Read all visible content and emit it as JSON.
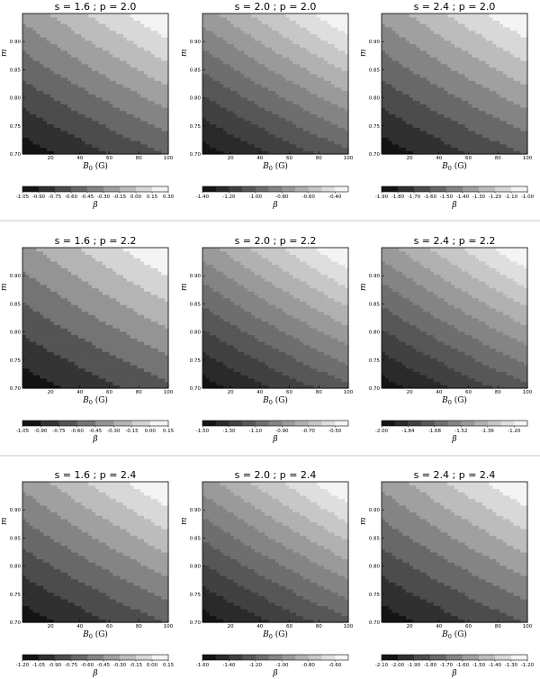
{
  "chart_data": [
    {
      "type": "contour",
      "title": "s = 1.6 ; p = 2.0",
      "xlabel": "B",
      "xlabel_sub": "0",
      "xlabel_unit": " (G)",
      "ylabel": "m",
      "cbar_label": "β",
      "xlim": [
        1,
        100
      ],
      "ylim": [
        0.7,
        0.95
      ],
      "x_ticks": [
        "20",
        "40",
        "60",
        "80",
        "100"
      ],
      "y_ticks": [
        "0.70",
        "0.75",
        "0.80",
        "0.85",
        "0.90"
      ],
      "levels": [
        "-1.05",
        "-0.90",
        "-0.75",
        "-0.60",
        "-0.45",
        "-0.30",
        "-0.15",
        "0.00",
        "0.15",
        "0.30"
      ],
      "cbar_ticks": [
        "-1.05",
        "-0.90",
        "-0.75",
        "-0.60",
        "-0.45",
        "-0.30",
        "-0.15",
        "0.00",
        "0.15",
        "0.30"
      ],
      "beta_min": -1.05,
      "beta_max": 0.3
    },
    {
      "type": "contour",
      "title": "s = 2.0 ; p = 2.0",
      "xlabel": "B",
      "xlabel_sub": "0",
      "xlabel_unit": " (G)",
      "ylabel": "m",
      "cbar_label": "β",
      "xlim": [
        1,
        100
      ],
      "ylim": [
        0.7,
        0.95
      ],
      "x_ticks": [
        "20",
        "40",
        "60",
        "80",
        "100"
      ],
      "y_ticks": [
        "0.70",
        "0.75",
        "0.80",
        "0.85",
        "0.90"
      ],
      "levels": [
        "-1.40",
        "-1.30",
        "-1.20",
        "-1.10",
        "-1.00",
        "-0.90",
        "-0.80",
        "-0.70",
        "-0.60",
        "-0.50",
        "-0.40",
        "-0.30"
      ],
      "cbar_ticks": [
        "-1.40",
        "-1.20",
        "-1.00",
        "-0.80",
        "-0.60",
        "-0.40"
      ],
      "beta_min": -1.4,
      "beta_max": -0.3
    },
    {
      "type": "contour",
      "title": "s = 2.4 ; p = 2.0",
      "xlabel": "B",
      "xlabel_sub": "0",
      "xlabel_unit": " (G)",
      "ylabel": "m",
      "cbar_label": "β",
      "xlim": [
        1,
        100
      ],
      "ylim": [
        0.7,
        0.95
      ],
      "x_ticks": [
        "20",
        "40",
        "60",
        "80",
        "100"
      ],
      "y_ticks": [
        "0.70",
        "0.75",
        "0.80",
        "0.85",
        "0.90"
      ],
      "levels": [
        "-1.90",
        "-1.80",
        "-1.70",
        "-1.60",
        "-1.50",
        "-1.40",
        "-1.30",
        "-1.20",
        "-1.10",
        "-1.00"
      ],
      "cbar_ticks": [
        "-1.90",
        "-1.80",
        "-1.70",
        "-1.60",
        "-1.50",
        "-1.40",
        "-1.30",
        "-1.20",
        "-1.10",
        "-1.00"
      ],
      "beta_min": -1.9,
      "beta_max": -1.0
    },
    {
      "type": "contour",
      "title": "s = 1.6 ; p = 2.2",
      "xlabel": "B",
      "xlabel_sub": "0",
      "xlabel_unit": " (G)",
      "ylabel": "m",
      "cbar_label": "β",
      "xlim": [
        1,
        100
      ],
      "ylim": [
        0.7,
        0.95
      ],
      "x_ticks": [
        "20",
        "40",
        "60",
        "80",
        "100"
      ],
      "y_ticks": [
        "0.70",
        "0.75",
        "0.80",
        "0.85",
        "0.90"
      ],
      "levels": [
        "-1.05",
        "-0.90",
        "-0.75",
        "-0.60",
        "-0.45",
        "-0.30",
        "-0.15",
        "0.00",
        "0.15"
      ],
      "cbar_ticks": [
        "-1.05",
        "-0.90",
        "-0.75",
        "-0.60",
        "-0.45",
        "-0.30",
        "-0.15",
        "0.00",
        "0.15"
      ],
      "beta_min": -1.05,
      "beta_max": 0.15
    },
    {
      "type": "contour",
      "title": "s = 2.0 ; p = 2.2",
      "xlabel": "B",
      "xlabel_sub": "0",
      "xlabel_unit": " (G)",
      "ylabel": "m",
      "cbar_label": "β",
      "xlim": [
        1,
        100
      ],
      "ylim": [
        0.7,
        0.95
      ],
      "x_ticks": [
        "20",
        "40",
        "60",
        "80",
        "100"
      ],
      "y_ticks": [
        "0.70",
        "0.75",
        "0.80",
        "0.85",
        "0.90"
      ],
      "levels": [
        "-1.50",
        "-1.40",
        "-1.30",
        "-1.20",
        "-1.10",
        "-1.00",
        "-0.90",
        "-0.80",
        "-0.70",
        "-0.60",
        "-0.50",
        "-0.40"
      ],
      "cbar_ticks": [
        "-1.50",
        "-1.30",
        "-1.10",
        "-0.90",
        "-0.70",
        "-0.50"
      ],
      "beta_min": -1.5,
      "beta_max": -0.4
    },
    {
      "type": "contour",
      "title": "s = 2.4 ; p = 2.2",
      "xlabel": "B",
      "xlabel_sub": "0",
      "xlabel_unit": " (G)",
      "ylabel": "m",
      "cbar_label": "β",
      "xlim": [
        1,
        100
      ],
      "ylim": [
        0.7,
        0.95
      ],
      "x_ticks": [
        "20",
        "40",
        "60",
        "80",
        "100"
      ],
      "y_ticks": [
        "0.70",
        "0.75",
        "0.80",
        "0.85",
        "0.90"
      ],
      "levels": [
        "-2.00",
        "-1.92",
        "-1.84",
        "-1.76",
        "-1.68",
        "-1.60",
        "-1.52",
        "-1.44",
        "-1.36",
        "-1.28",
        "-1.20",
        "-1.12"
      ],
      "cbar_ticks": [
        "-2.00",
        "-1.84",
        "-1.68",
        "-1.52",
        "-1.36",
        "-1.20"
      ],
      "beta_min": -2.0,
      "beta_max": -1.12
    },
    {
      "type": "contour",
      "title": "s = 1.6 ; p = 2.4",
      "xlabel": "B",
      "xlabel_sub": "0",
      "xlabel_unit": " (G)",
      "ylabel": "m",
      "cbar_label": "β",
      "xlim": [
        1,
        100
      ],
      "ylim": [
        0.7,
        0.95
      ],
      "x_ticks": [
        "20",
        "40",
        "60",
        "80",
        "100"
      ],
      "y_ticks": [
        "0.70",
        "0.75",
        "0.80",
        "0.85",
        "0.90"
      ],
      "levels": [
        "-1.20",
        "-1.05",
        "-0.90",
        "-0.75",
        "-0.60",
        "-0.45",
        "-0.30",
        "-0.15",
        "0.00",
        "0.15"
      ],
      "cbar_ticks": [
        "-1.20",
        "-1.05",
        "-0.90",
        "-0.75",
        "-0.60",
        "-0.45",
        "-0.30",
        "-0.15",
        "0.00",
        "0.15"
      ],
      "beta_min": -1.2,
      "beta_max": 0.15
    },
    {
      "type": "contour",
      "title": "s = 2.0 ; p = 2.4",
      "xlabel": "B",
      "xlabel_sub": "0",
      "xlabel_unit": " (G)",
      "ylabel": "m",
      "cbar_label": "β",
      "xlim": [
        1,
        100
      ],
      "ylim": [
        0.7,
        0.95
      ],
      "x_ticks": [
        "20",
        "40",
        "60",
        "80",
        "100"
      ],
      "y_ticks": [
        "0.70",
        "0.75",
        "0.80",
        "0.85",
        "0.90"
      ],
      "levels": [
        "-1.60",
        "-1.50",
        "-1.40",
        "-1.30",
        "-1.20",
        "-1.10",
        "-1.00",
        "-0.90",
        "-0.80",
        "-0.70",
        "-0.60",
        "-0.50"
      ],
      "cbar_ticks": [
        "-1.60",
        "-1.40",
        "-1.20",
        "-1.00",
        "-0.80",
        "-0.60"
      ],
      "beta_min": -1.6,
      "beta_max": -0.5
    },
    {
      "type": "contour",
      "title": "s = 2.4 ; p = 2.4",
      "xlabel": "B",
      "xlabel_sub": "0",
      "xlabel_unit": " (G)",
      "ylabel": "m",
      "cbar_label": "β",
      "xlim": [
        1,
        100
      ],
      "ylim": [
        0.7,
        0.95
      ],
      "x_ticks": [
        "20",
        "40",
        "60",
        "80",
        "100"
      ],
      "y_ticks": [
        "0.70",
        "0.75",
        "0.80",
        "0.85",
        "0.90"
      ],
      "levels": [
        "-2.10",
        "-2.00",
        "-1.90",
        "-1.80",
        "-1.70",
        "-1.60",
        "-1.50",
        "-1.40",
        "-1.30",
        "-1.20"
      ],
      "cbar_ticks": [
        "-2.10",
        "-2.00",
        "-1.90",
        "-1.80",
        "-1.70",
        "-1.60",
        "-1.50",
        "-1.40",
        "-1.30",
        "-1.20"
      ],
      "beta_min": -2.1,
      "beta_max": -1.2
    }
  ],
  "colors": {
    "darkest": "#141414",
    "lightest": "#f4f4f4",
    "separator": "#c8c8c8",
    "frame": "#000000"
  }
}
